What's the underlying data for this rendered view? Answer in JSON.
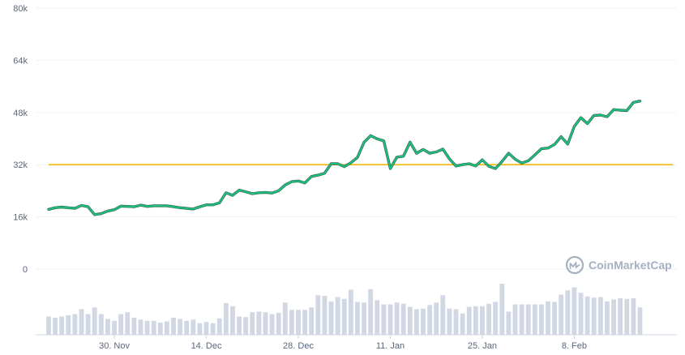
{
  "chart_data": {
    "type": "line",
    "y_ticks": [
      "0",
      "16k",
      "32k",
      "48k",
      "64k",
      "80k"
    ],
    "ylim": [
      0,
      80000
    ],
    "x_ticks": [
      "30. Nov",
      "14. Dec",
      "28. Dec",
      "11. Jan",
      "25. Jan",
      "8. Feb"
    ],
    "x_ticks_at": [
      10,
      24,
      38,
      52,
      66,
      80
    ],
    "days": 96,
    "grid": true,
    "series": [
      {
        "kind": "price",
        "color": "#16c784",
        "stroke": "#3a6e54",
        "values": [
          18300,
          18800,
          19000,
          18800,
          18600,
          19500,
          19100,
          16700,
          17000,
          17800,
          18200,
          19300,
          19200,
          19100,
          19600,
          19200,
          19400,
          19400,
          19400,
          19100,
          18800,
          18600,
          18400,
          19100,
          19700,
          19700,
          20300,
          23400,
          22600,
          24200,
          23700,
          23100,
          23400,
          23500,
          23300,
          24000,
          25800,
          26800,
          27000,
          26400,
          28400,
          28800,
          29400,
          32300,
          32300,
          31400,
          32600,
          34200,
          38900,
          40900,
          39900,
          39300,
          30800,
          34300,
          34600,
          38900,
          35500,
          36700,
          35500,
          35900,
          36800,
          33800,
          31600,
          32000,
          32300,
          31600,
          33500,
          31500,
          30800,
          33000,
          35500,
          33700,
          32500,
          33200,
          35000,
          36900,
          37100,
          38200,
          40600,
          38300,
          43700,
          46400,
          44600,
          47100,
          47200,
          46700,
          48900,
          48700,
          48600,
          51100,
          51500
        ]
      },
      {
        "kind": "reference",
        "color": "#f0b90b",
        "value": 32000
      },
      {
        "kind": "volume",
        "color": "#d1d7e3",
        "values": [
          0.3,
          0.28,
          0.3,
          0.32,
          0.34,
          0.42,
          0.34,
          0.45,
          0.34,
          0.26,
          0.23,
          0.34,
          0.37,
          0.28,
          0.25,
          0.23,
          0.23,
          0.2,
          0.22,
          0.28,
          0.26,
          0.23,
          0.25,
          0.19,
          0.21,
          0.19,
          0.27,
          0.52,
          0.47,
          0.3,
          0.29,
          0.37,
          0.38,
          0.37,
          0.34,
          0.36,
          0.53,
          0.41,
          0.41,
          0.41,
          0.45,
          0.65,
          0.64,
          0.55,
          0.62,
          0.59,
          0.74,
          0.54,
          0.53,
          0.75,
          0.57,
          0.5,
          0.5,
          0.53,
          0.51,
          0.46,
          0.42,
          0.43,
          0.49,
          0.53,
          0.65,
          0.43,
          0.42,
          0.35,
          0.46,
          0.47,
          0.47,
          0.51,
          0.54,
          0.84,
          0.38,
          0.5,
          0.5,
          0.5,
          0.5,
          0.5,
          0.55,
          0.54,
          0.66,
          0.73,
          0.78,
          0.69,
          0.63,
          0.61,
          0.62,
          0.55,
          0.58,
          0.6,
          0.59,
          0.6,
          0.45
        ]
      }
    ],
    "watermark": "CoinMarketCap"
  }
}
